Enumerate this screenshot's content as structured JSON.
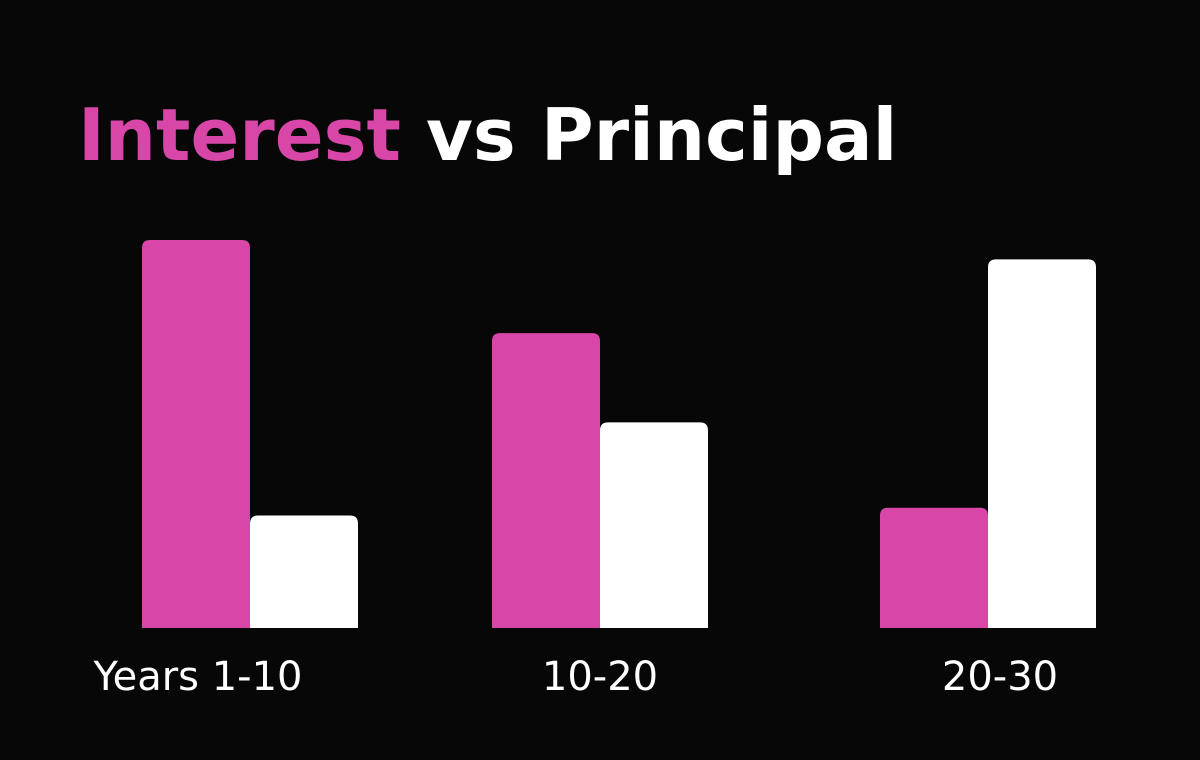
{
  "chart_data": {
    "type": "bar",
    "title": [
      "Interest",
      "vs",
      "Principal"
    ],
    "categories": [
      "Years 1-10",
      "10-20",
      "20-30"
    ],
    "series": [
      {
        "name": "Interest",
        "color": "#d847a8",
        "values": [
          100,
          76,
          31
        ]
      },
      {
        "name": "Principal",
        "color": "#ffffff",
        "values": [
          29,
          53,
          95
        ]
      }
    ]
  }
}
